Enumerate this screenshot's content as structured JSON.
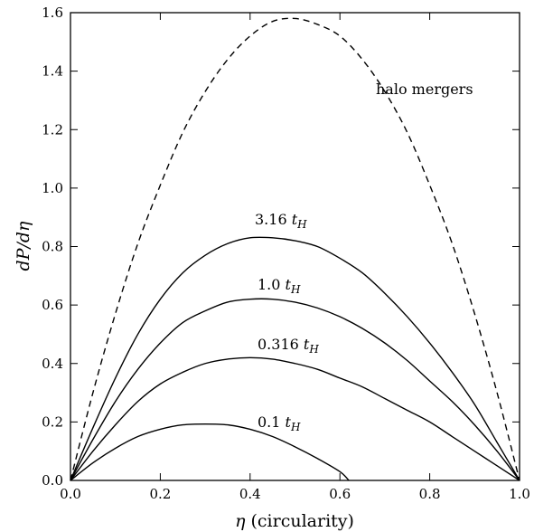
{
  "chart_data": {
    "type": "line",
    "xlabel_symbol": "η",
    "xlabel_text": " (circularity)",
    "ylabel": "dP/dη",
    "xlim": [
      0.0,
      1.0
    ],
    "ylim": [
      0.0,
      1.6
    ],
    "x_ticks": [
      "0.0",
      "0.2",
      "0.4",
      "0.6",
      "0.8",
      "1.0"
    ],
    "y_ticks": [
      "0.0",
      "0.2",
      "0.4",
      "0.6",
      "0.8",
      "1.0",
      "1.2",
      "1.4",
      "1.6"
    ],
    "grid": false,
    "x": [
      0.0,
      0.05,
      0.1,
      0.15,
      0.2,
      0.25,
      0.3,
      0.35,
      0.4,
      0.45,
      0.5,
      0.55,
      0.6,
      0.65,
      0.7,
      0.75,
      0.8,
      0.85,
      0.9,
      0.95,
      1.0
    ],
    "series": [
      {
        "name": "halo mergers",
        "style": "dashed",
        "x": [
          0.0,
          0.05,
          0.1,
          0.15,
          0.2,
          0.25,
          0.3,
          0.35,
          0.4,
          0.45,
          0.5,
          0.55,
          0.6,
          0.65,
          0.7,
          0.75,
          0.8,
          0.85,
          0.9,
          0.95,
          1.0
        ],
        "values": [
          0.0,
          0.3,
          0.57,
          0.81,
          1.01,
          1.19,
          1.33,
          1.44,
          1.52,
          1.57,
          1.58,
          1.56,
          1.52,
          1.44,
          1.33,
          1.19,
          1.01,
          0.81,
          0.57,
          0.3,
          0.0
        ]
      },
      {
        "name": "3.16 t_H",
        "label_main": "3.16 ",
        "label_sym": "t",
        "label_sub": "H",
        "style": "solid",
        "x": [
          0.0,
          0.05,
          0.1,
          0.15,
          0.2,
          0.25,
          0.3,
          0.35,
          0.4,
          0.45,
          0.5,
          0.55,
          0.6,
          0.65,
          0.7,
          0.75,
          0.8,
          0.85,
          0.9,
          0.95,
          1.0
        ],
        "values": [
          0.0,
          0.18,
          0.35,
          0.5,
          0.62,
          0.71,
          0.77,
          0.81,
          0.83,
          0.83,
          0.82,
          0.8,
          0.76,
          0.71,
          0.64,
          0.56,
          0.47,
          0.37,
          0.26,
          0.13,
          0.0
        ]
      },
      {
        "name": "1.0 t_H",
        "label_main": "1.0 ",
        "label_sym": "t",
        "label_sub": "H",
        "style": "solid",
        "x": [
          0.0,
          0.05,
          0.1,
          0.15,
          0.2,
          0.25,
          0.3,
          0.35,
          0.4,
          0.45,
          0.5,
          0.55,
          0.6,
          0.65,
          0.7,
          0.75,
          0.8,
          0.85,
          0.9,
          0.95,
          1.0
        ],
        "values": [
          0.0,
          0.14,
          0.27,
          0.38,
          0.47,
          0.54,
          0.58,
          0.61,
          0.62,
          0.62,
          0.61,
          0.59,
          0.56,
          0.52,
          0.47,
          0.41,
          0.34,
          0.27,
          0.19,
          0.1,
          0.0
        ]
      },
      {
        "name": "0.316 t_H",
        "label_main": "0.316 ",
        "label_sym": "t",
        "label_sub": "H",
        "style": "solid",
        "x": [
          0.0,
          0.05,
          0.1,
          0.15,
          0.2,
          0.25,
          0.3,
          0.35,
          0.4,
          0.45,
          0.5,
          0.55,
          0.6,
          0.65,
          0.7,
          0.75,
          0.8,
          0.85,
          0.9,
          0.95,
          1.0
        ],
        "values": [
          0.0,
          0.1,
          0.19,
          0.27,
          0.33,
          0.37,
          0.4,
          0.415,
          0.42,
          0.415,
          0.4,
          0.38,
          0.35,
          0.32,
          0.28,
          0.24,
          0.2,
          0.15,
          0.1,
          0.05,
          0.0
        ]
      },
      {
        "name": "0.1 t_H",
        "label_main": "0.1 ",
        "label_sym": "t",
        "label_sub": "H",
        "style": "solid",
        "x": [
          0.0,
          0.05,
          0.1,
          0.15,
          0.2,
          0.25,
          0.3,
          0.35,
          0.4,
          0.45,
          0.5,
          0.55,
          0.6,
          0.62
        ],
        "values": [
          0.0,
          0.06,
          0.11,
          0.15,
          0.175,
          0.19,
          0.193,
          0.19,
          0.175,
          0.15,
          0.115,
          0.075,
          0.03,
          0.0
        ]
      }
    ]
  }
}
